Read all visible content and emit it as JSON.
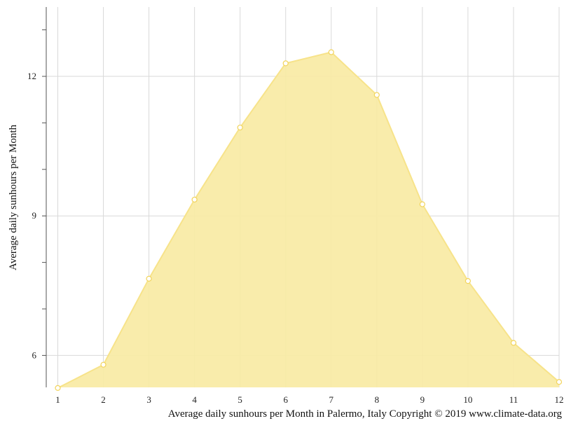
{
  "chart_data": {
    "type": "area",
    "x": [
      1,
      2,
      3,
      4,
      5,
      6,
      7,
      8,
      9,
      10,
      11,
      12
    ],
    "values": [
      5.3,
      5.8,
      7.65,
      9.35,
      10.9,
      12.28,
      12.52,
      11.6,
      9.25,
      7.6,
      6.27,
      5.43
    ],
    "xticks": [
      "1",
      "2",
      "3",
      "4",
      "5",
      "6",
      "7",
      "8",
      "9",
      "10",
      "11",
      "12"
    ],
    "yticks": [
      "6",
      "9",
      "12"
    ],
    "ylabel": "Average daily sunhours per Month",
    "caption": "Average daily sunhours per Month in Palermo, Italy Copyright © 2019 www.climate-data.org",
    "xlim": [
      1,
      12
    ],
    "ylim": [
      5.3,
      13.5
    ],
    "grid": true,
    "fill_color": "#f9eaa4",
    "line_color": "#f7e38a",
    "marker_color": "#f2d45c"
  }
}
